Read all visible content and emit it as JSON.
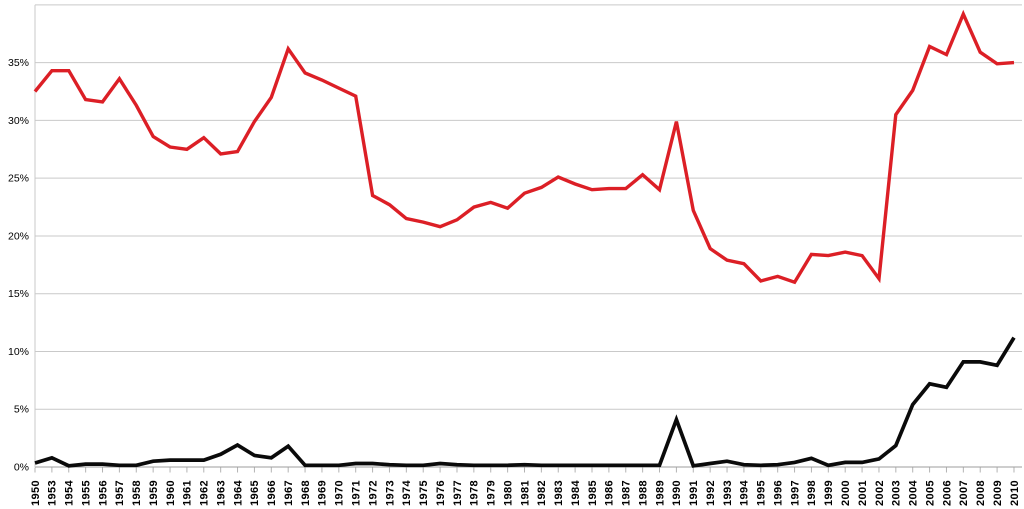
{
  "chart_data": {
    "type": "line",
    "title": "",
    "xlabel": "",
    "ylabel": "",
    "ylim": [
      0,
      40
    ],
    "grid": true,
    "legend_position": "none",
    "y_tick_labels": [
      "0%",
      "5%",
      "10%",
      "15%",
      "20%",
      "25%",
      "30%",
      "35%"
    ],
    "y_tick_values": [
      0,
      5,
      10,
      15,
      20,
      25,
      30,
      35
    ],
    "unlabeled_top_gridline_value": 40,
    "categories": [
      "1950",
      "1953",
      "1954",
      "1955",
      "1956",
      "1957",
      "1958",
      "1959",
      "1960",
      "1961",
      "1962",
      "1963",
      "1964",
      "1965",
      "1966",
      "1967",
      "1968",
      "1969",
      "1970",
      "1971",
      "1972",
      "1973",
      "1974",
      "1975",
      "1976",
      "1977",
      "1978",
      "1979",
      "1980",
      "1981",
      "1982",
      "1983",
      "1984",
      "1985",
      "1986",
      "1987",
      "1988",
      "1989",
      "1990",
      "1991",
      "1992",
      "1993",
      "1994",
      "1995",
      "1996",
      "1997",
      "1998",
      "1999",
      "2000",
      "2001",
      "2002",
      "2003",
      "2004",
      "2005",
      "2006",
      "2007",
      "2008",
      "2009",
      "2010"
    ],
    "series": [
      {
        "name": "red-series",
        "color": "#dc1f26",
        "values": [
          32.5,
          34.3,
          34.3,
          31.8,
          31.6,
          33.6,
          31.3,
          28.6,
          27.7,
          27.5,
          28.5,
          27.1,
          27.3,
          29.9,
          32.0,
          36.2,
          34.1,
          33.5,
          32.8,
          32.1,
          23.5,
          22.7,
          21.5,
          21.2,
          20.8,
          21.4,
          22.5,
          22.9,
          22.4,
          23.7,
          24.2,
          25.1,
          24.5,
          24.0,
          24.1,
          24.1,
          25.3,
          24.0,
          29.9,
          22.2,
          18.9,
          17.9,
          17.6,
          16.1,
          16.5,
          16.0,
          18.4,
          18.3,
          18.6,
          18.3,
          16.3,
          30.5,
          32.6,
          36.4,
          35.7,
          39.2,
          35.9,
          34.9,
          35.0
        ]
      },
      {
        "name": "black-series",
        "color": "#0a0a0a",
        "values": [
          0.35,
          0.8,
          0.1,
          0.25,
          0.25,
          0.15,
          0.15,
          0.5,
          0.6,
          0.6,
          0.6,
          1.1,
          1.9,
          1.0,
          0.8,
          1.8,
          0.15,
          0.15,
          0.15,
          0.3,
          0.3,
          0.2,
          0.15,
          0.15,
          0.3,
          0.2,
          0.15,
          0.15,
          0.15,
          0.2,
          0.15,
          0.15,
          0.15,
          0.15,
          0.15,
          0.15,
          0.15,
          0.15,
          4.1,
          0.1,
          0.3,
          0.5,
          0.2,
          0.15,
          0.2,
          0.4,
          0.75,
          0.15,
          0.4,
          0.4,
          0.7,
          1.85,
          5.4,
          7.2,
          6.9,
          9.1,
          9.1,
          8.8,
          11.2
        ]
      }
    ]
  },
  "colors": {
    "background": "#ffffff",
    "gridline": "#c9c9c9",
    "axis_line": "#9e9e9e",
    "tick_mark": "#b3b3b3",
    "label_text": "#000000"
  }
}
